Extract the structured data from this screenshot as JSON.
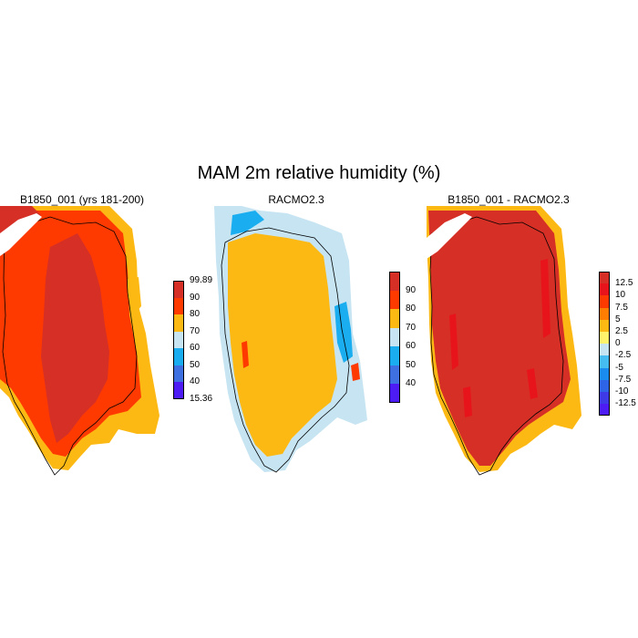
{
  "title": "MAM 2m relative humidity (%)",
  "panels": [
    {
      "title": "B1850_001 (yrs 181-200)",
      "colorbar": {
        "labels": [
          "99.89",
          "90",
          "80",
          "70",
          "60",
          "50",
          "40",
          "15.36"
        ],
        "colors": [
          "#d62f26",
          "#ff3a00",
          "#fdb913",
          "#c6e4f2",
          "#1aaef0",
          "#3e70e1",
          "#4d1cf5"
        ]
      },
      "fills": {
        "outer": "#fdb913",
        "mid": "#ff3a00",
        "core": "#d62f26",
        "accent": "#fdb913"
      }
    },
    {
      "title": "RACMO2.3",
      "colorbar": {
        "labels": [
          "90",
          "80",
          "70",
          "60",
          "50",
          "40"
        ],
        "colors": [
          "#d62f26",
          "#ff3a00",
          "#fdb913",
          "#c6e4f2",
          "#1aaef0",
          "#3e70e1",
          "#4d1cf5"
        ]
      },
      "fills": {
        "outer": "#c6e4f2",
        "mid": "#fdb913",
        "core": "#fdb913",
        "accent": "#1aaef0"
      }
    },
    {
      "title": "B1850_001 - RACMO2.3",
      "colorbar": {
        "labels": [
          "12.5",
          "10",
          "7.5",
          "5",
          "2.5",
          "0",
          "-2.5",
          "-5",
          "-7.5",
          "-10",
          "-12.5"
        ],
        "colors": [
          "#d62f26",
          "#e8141c",
          "#ff3a00",
          "#ff7d00",
          "#fdb913",
          "#fff36b",
          "#c6e4f2",
          "#46bdf2",
          "#1a8cf0",
          "#2e64e6",
          "#3e3ae6",
          "#4d1cf5"
        ]
      },
      "fills": {
        "outer": "#fdb913",
        "mid": "#d62f26",
        "core": "#d62f26",
        "accent": "#e8141c"
      }
    }
  ]
}
